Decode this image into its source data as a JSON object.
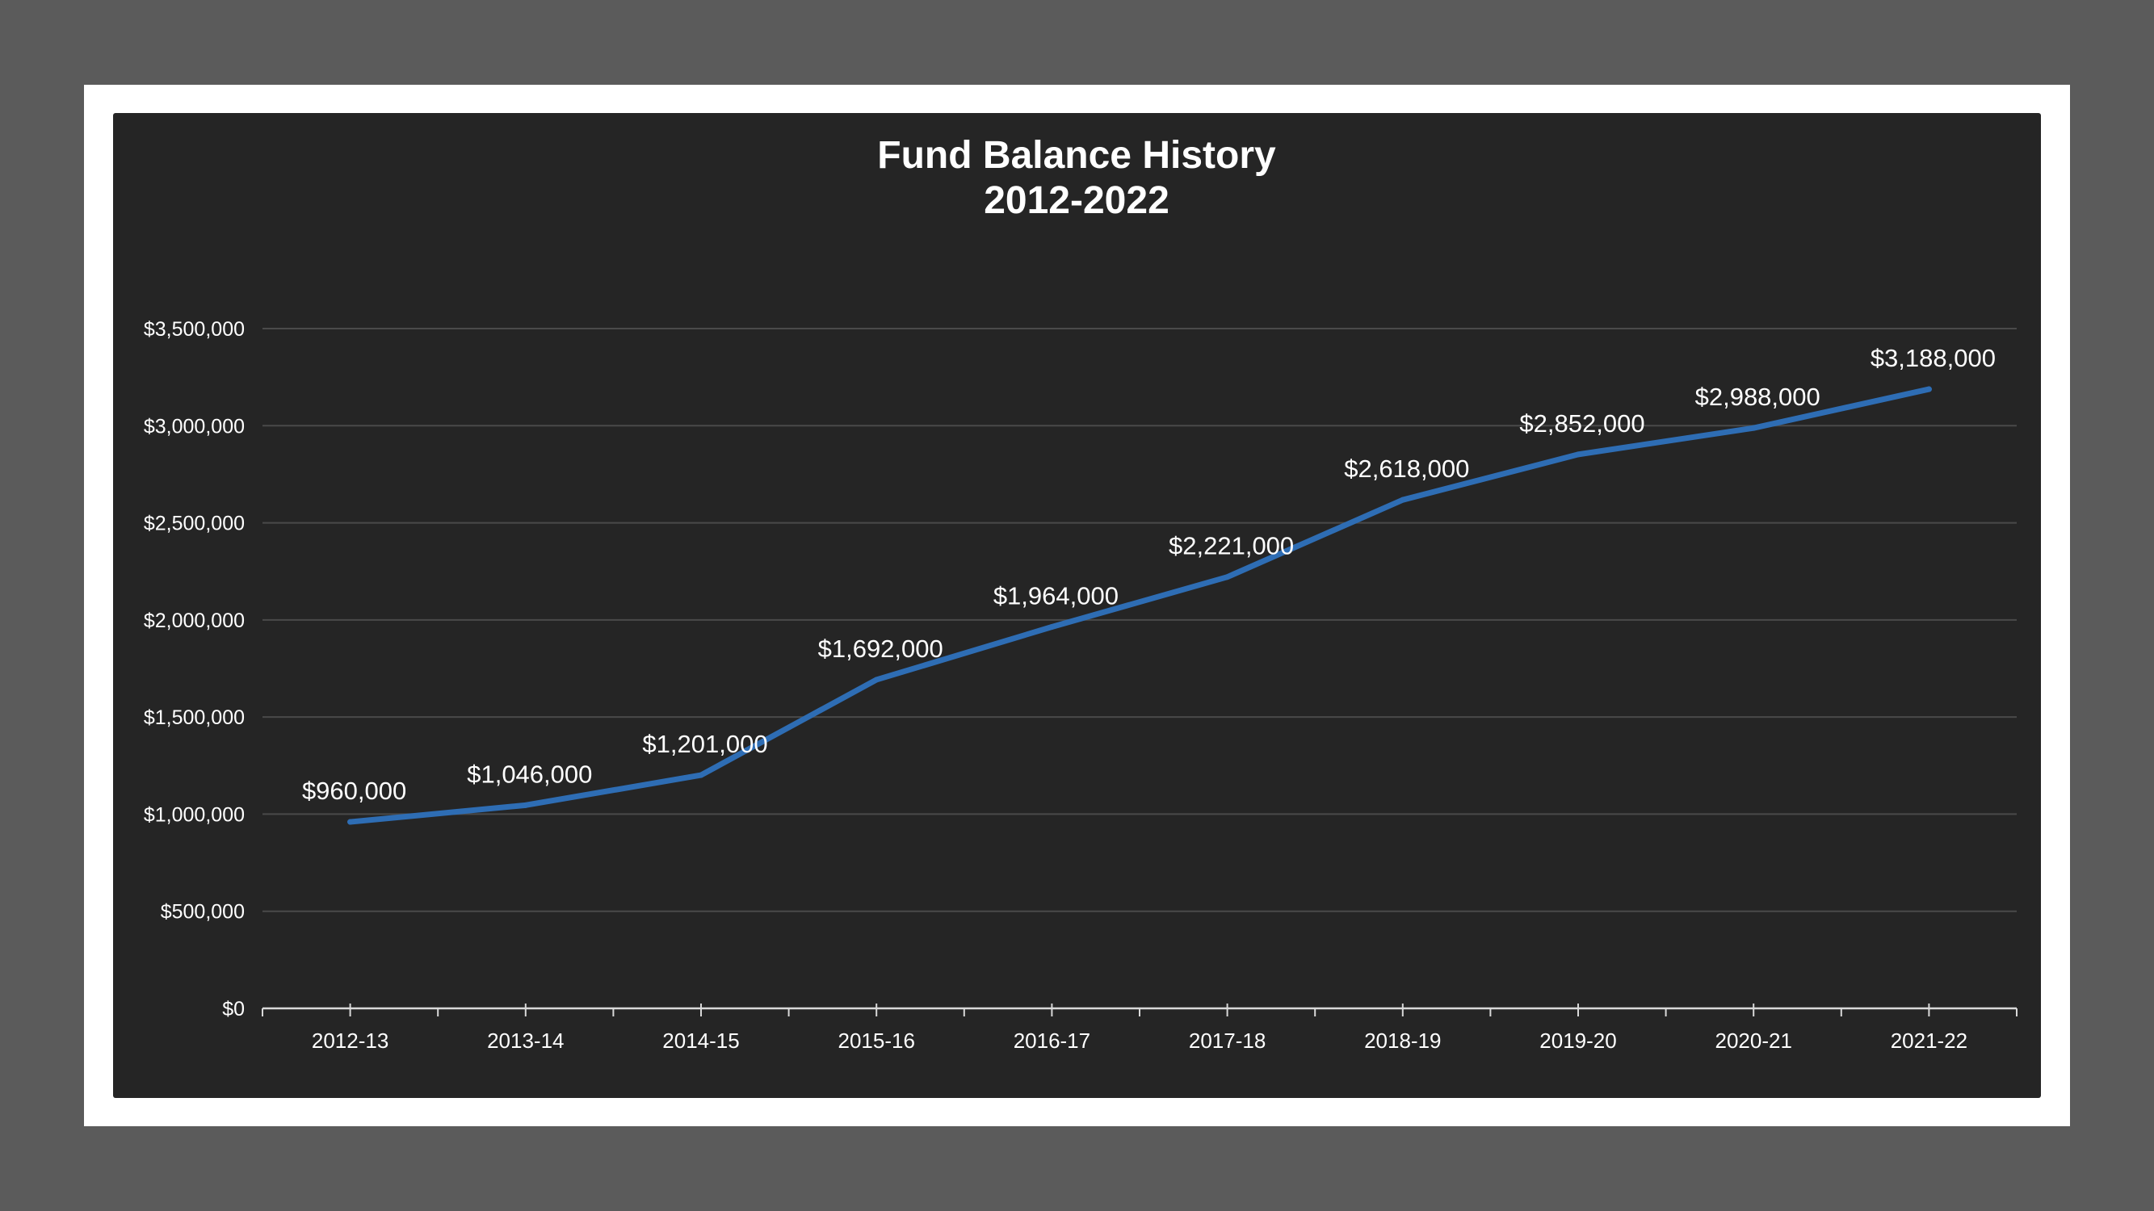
{
  "chart_data": {
    "type": "line",
    "title": "Fund Balance History",
    "subtitle": "2012-2022",
    "xlabel": "",
    "ylabel": "",
    "categories": [
      "2012-13",
      "2013-14",
      "2014-15",
      "2015-16",
      "2016-17",
      "2017-18",
      "2018-19",
      "2019-20",
      "2020-21",
      "2021-22"
    ],
    "values": [
      960000,
      1046000,
      1201000,
      1692000,
      1964000,
      2221000,
      2618000,
      2852000,
      2988000,
      3188000
    ],
    "data_labels": [
      "$960,000",
      "$1,046,000",
      "$1,201,000",
      "$1,692,000",
      "$1,964,000",
      "$2,221,000",
      "$2,618,000",
      "$2,852,000",
      "$2,988,000",
      "$3,188,000"
    ],
    "y_ticks": [
      0,
      500000,
      1000000,
      1500000,
      2000000,
      2500000,
      3000000,
      3500000
    ],
    "y_tick_labels": [
      "$0",
      "$500,000",
      "$1,000,000",
      "$1,500,000",
      "$2,000,000",
      "$2,500,000",
      "$3,000,000",
      "$3,500,000"
    ],
    "ylim": [
      0,
      3500000
    ],
    "grid": true,
    "legend": "none",
    "colors": {
      "line": "#2e6db4",
      "background": "#252525",
      "gridline": "#4a4a4a",
      "text": "#ffffff"
    }
  }
}
